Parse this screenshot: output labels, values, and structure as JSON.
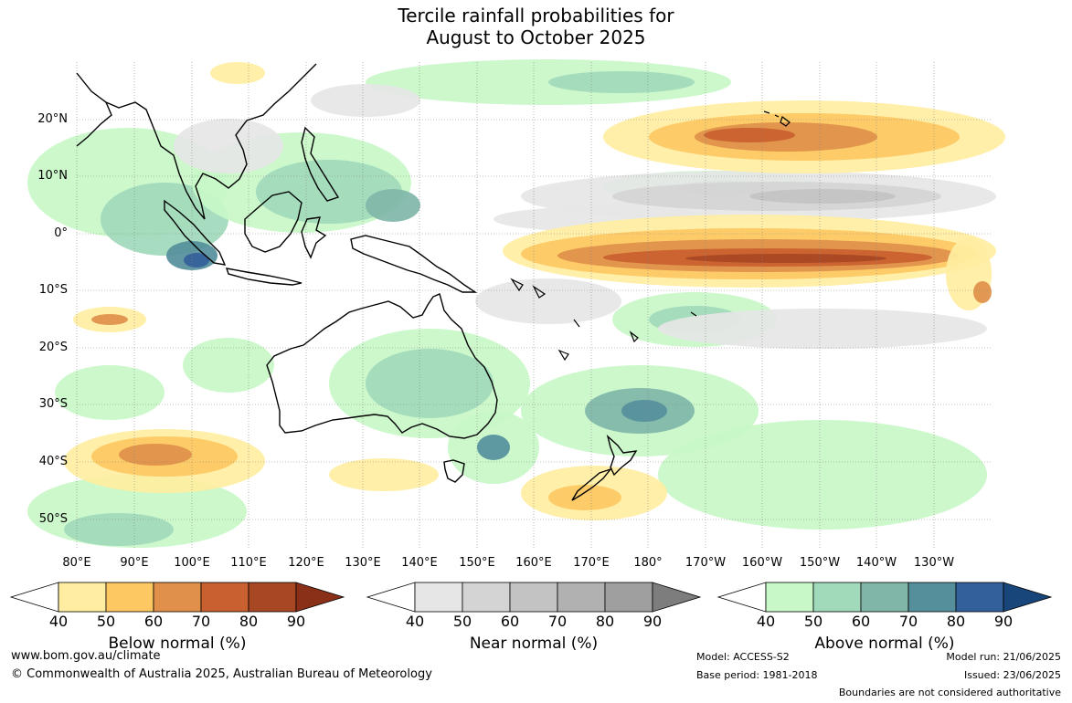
{
  "title_line1": "Tercile rainfall probabilities for",
  "title_line2": "August to October 2025",
  "lat_labels": [
    "20°N",
    "10°N",
    "0°",
    "10°S",
    "20°S",
    "30°S",
    "40°S",
    "50°S"
  ],
  "lon_labels": [
    "80°E",
    "90°E",
    "100°E",
    "110°E",
    "120°E",
    "130°E",
    "140°E",
    "150°E",
    "160°E",
    "170°E",
    "180°",
    "170°W",
    "160°W",
    "150°W",
    "140°W",
    "130°W"
  ],
  "legends": [
    {
      "title": "Below normal (%)",
      "ticks": [
        "40",
        "50",
        "60",
        "70",
        "80",
        "90"
      ],
      "colors": [
        "#ffeea1",
        "#fdc862",
        "#e0904a",
        "#c9602f",
        "#a84724",
        "#8b3018"
      ]
    },
    {
      "title": "Near normal (%)",
      "ticks": [
        "40",
        "50",
        "60",
        "70",
        "80",
        "90"
      ],
      "colors": [
        "#e6e6e6",
        "#d4d4d4",
        "#c3c3c3",
        "#b1b1b1",
        "#9f9f9f",
        "#7d7d7d"
      ]
    },
    {
      "title": "Above normal (%)",
      "ticks": [
        "40",
        "50",
        "60",
        "70",
        "80",
        "90"
      ],
      "colors": [
        "#c8f7c8",
        "#a1d9bb",
        "#80b6a8",
        "#558f9c",
        "#33609a",
        "#18457a"
      ]
    }
  ],
  "footer": {
    "website": "www.bom.gov.au/climate",
    "copyright": "© Commonwealth of Australia 2025, Australian Bureau of Meteorology",
    "model": "Model: ACCESS-S2",
    "base_period": "Base period: 1981-2018",
    "model_run": "Model run: 21/06/2025",
    "issued": "Issued: 23/06/2025",
    "disclaimer": "Boundaries are not considered authoritative"
  }
}
